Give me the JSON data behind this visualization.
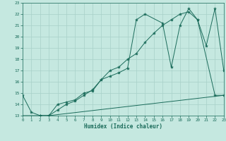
{
  "title": "",
  "xlabel": "Humidex (Indice chaleur)",
  "xlim": [
    0,
    23
  ],
  "ylim": [
    13,
    23
  ],
  "xticks": [
    0,
    1,
    2,
    3,
    4,
    5,
    6,
    7,
    8,
    9,
    10,
    11,
    12,
    13,
    14,
    15,
    16,
    17,
    18,
    19,
    20,
    21,
    22,
    23
  ],
  "yticks": [
    13,
    14,
    15,
    16,
    17,
    18,
    19,
    20,
    21,
    22,
    23
  ],
  "bg_color": "#c5e8e0",
  "line_color": "#1a6b5a",
  "grid_color": "#a8d0c8",
  "line1_x": [
    0,
    1,
    2,
    3,
    4,
    5,
    6,
    7,
    8,
    9,
    10,
    11,
    12,
    13,
    14,
    16,
    17,
    18,
    19,
    20,
    21,
    22,
    23
  ],
  "line1_y": [
    14.8,
    13.3,
    13.0,
    13.0,
    14.0,
    14.2,
    14.4,
    15.0,
    15.2,
    16.2,
    16.5,
    16.8,
    17.2,
    21.5,
    22.0,
    21.2,
    17.3,
    21.0,
    22.5,
    21.5,
    19.2,
    22.5,
    17.0
  ],
  "line2_x": [
    2,
    3,
    4,
    5,
    6,
    7,
    8,
    9,
    10,
    11,
    12,
    13,
    14,
    15,
    16,
    17,
    18,
    19,
    20,
    22,
    23
  ],
  "line2_y": [
    13.0,
    13.0,
    13.5,
    14.0,
    14.3,
    14.8,
    15.3,
    16.2,
    17.0,
    17.3,
    18.0,
    18.5,
    19.5,
    20.3,
    21.0,
    21.5,
    22.0,
    22.2,
    21.5,
    14.8,
    14.8
  ],
  "line3_x": [
    0,
    3,
    23
  ],
  "line3_y": [
    13.0,
    13.0,
    14.8
  ]
}
